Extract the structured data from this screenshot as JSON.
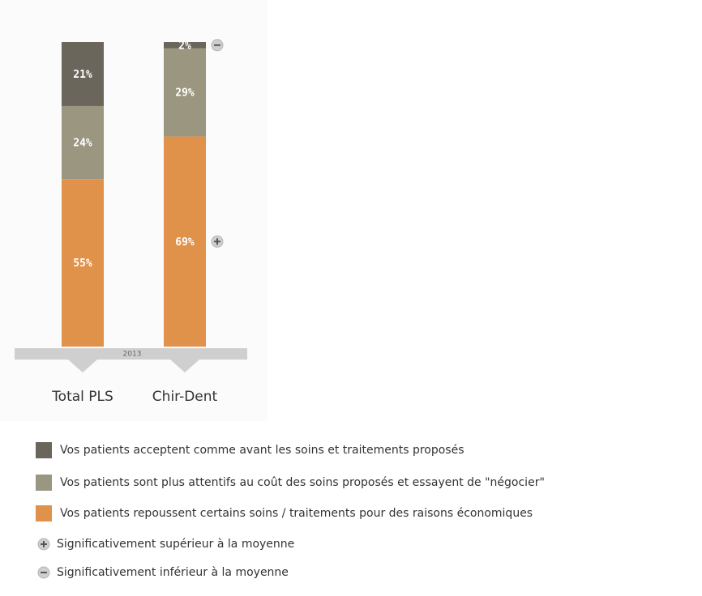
{
  "chart_data": {
    "type": "stacked-bar",
    "categories": [
      "Total PLS",
      "Chir-Dent"
    ],
    "period_label": "2013",
    "series": [
      {
        "name": "Vos patients acceptent comme avant les soins et traitements proposés",
        "color": "#6b665c",
        "values": [
          21,
          2
        ],
        "value_labels": [
          "21%",
          "2%"
        ],
        "markers": [
          null,
          "minus"
        ]
      },
      {
        "name": "Vos patients sont plus attentifs au coût des soins proposés et essayent de \"négocier\"",
        "color": "#9b9680",
        "values": [
          24,
          29
        ],
        "value_labels": [
          "24%",
          "29%"
        ],
        "markers": [
          null,
          null
        ]
      },
      {
        "name": "Vos patients repoussent certains soins / traitements pour des raisons économiques",
        "color": "#e0924a",
        "values": [
          55,
          69
        ],
        "value_labels": [
          "55%",
          "69%"
        ],
        "markers": [
          null,
          "plus"
        ]
      }
    ],
    "marker_legend": [
      {
        "symbol": "plus",
        "label": "Significativement supérieur à la moyenne"
      },
      {
        "symbol": "minus",
        "label": "Significativement inférieur à la moyenne"
      }
    ]
  }
}
